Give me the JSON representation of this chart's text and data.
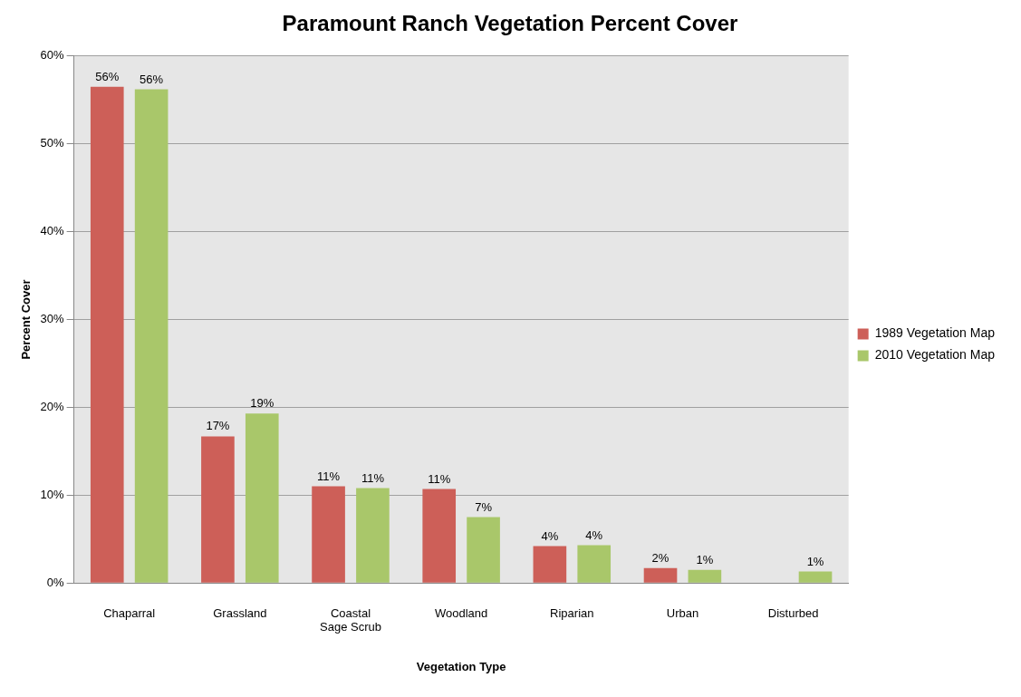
{
  "chart_data": {
    "type": "bar",
    "title": "Paramount Ranch Vegetation Percent Cover",
    "xlabel": "Vegetation Type",
    "ylabel": "Percent Cover",
    "categories": [
      "Chaparral",
      "Grassland",
      "Coastal Sage Scrub",
      "Woodland",
      "Riparian",
      "Urban",
      "Disturbed"
    ],
    "series": [
      {
        "name": "1989 Vegetation Map",
        "color": "#cd5f58",
        "values": [
          56.5,
          16.7,
          11.0,
          10.7,
          4.2,
          1.7,
          null
        ],
        "value_labels": [
          "56%",
          "17%",
          "11%",
          "11%",
          "4%",
          "2%",
          null
        ]
      },
      {
        "name": "2010 Vegetation Map",
        "color": "#a9c76a",
        "values": [
          56.2,
          19.3,
          10.8,
          7.5,
          4.3,
          1.5,
          1.3
        ],
        "value_labels": [
          "56%",
          "19%",
          "11%",
          "7%",
          "4%",
          "1%",
          "1%"
        ]
      }
    ],
    "ylim": [
      0,
      60
    ],
    "yticks": [
      {
        "value": 0,
        "label": "0%"
      },
      {
        "value": 10,
        "label": "10%"
      },
      {
        "value": 20,
        "label": "20%"
      },
      {
        "value": 30,
        "label": "30%"
      },
      {
        "value": 40,
        "label": "40%"
      },
      {
        "value": 50,
        "label": "50%"
      },
      {
        "value": 60,
        "label": "60%"
      }
    ],
    "grid": "y",
    "legend": "right"
  }
}
